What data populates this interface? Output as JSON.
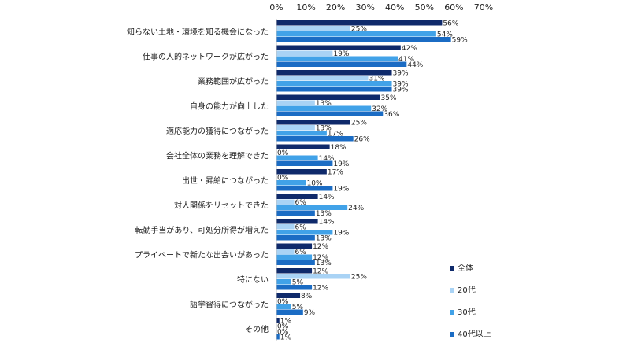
{
  "chart_data": {
    "type": "bar",
    "orientation": "horizontal",
    "categories": [
      "知らない土地・環境を知る機会になった",
      "仕事の人的ネットワークが広がった",
      "業務範囲が広がった",
      "自身の能力が向上した",
      "適応能力の獲得につながった",
      "会社全体の業務を理解できた",
      "出世・昇給につながった",
      "対人関係をリセットできた",
      "転勤手当があり、可処分所得が増えた",
      "プライベートで新たな出会いがあった",
      "特にない",
      "語学習得につながった",
      "その他"
    ],
    "series": [
      {
        "name": "全体",
        "color": "#0f2a6b",
        "values": [
          56,
          42,
          39,
          35,
          25,
          18,
          17,
          14,
          14,
          12,
          12,
          8,
          1
        ]
      },
      {
        "name": "20代",
        "color": "#a9d3f5",
        "values": [
          25,
          19,
          31,
          13,
          13,
          0,
          0,
          6,
          6,
          6,
          25,
          0,
          0
        ]
      },
      {
        "name": "30代",
        "color": "#41a2e8",
        "values": [
          54,
          41,
          39,
          32,
          17,
          14,
          10,
          24,
          19,
          12,
          5,
          5,
          0
        ]
      },
      {
        "name": "40代以上",
        "color": "#1b6cc4",
        "values": [
          59,
          44,
          39,
          36,
          26,
          19,
          19,
          13,
          13,
          13,
          12,
          9,
          1
        ]
      }
    ],
    "xlim": [
      0,
      70
    ],
    "xticks": [
      0,
      10,
      20,
      30,
      40,
      50,
      60,
      70
    ],
    "tick_suffix": "%",
    "value_suffix": "%",
    "grid": false,
    "legend_position": "right-bottom"
  }
}
